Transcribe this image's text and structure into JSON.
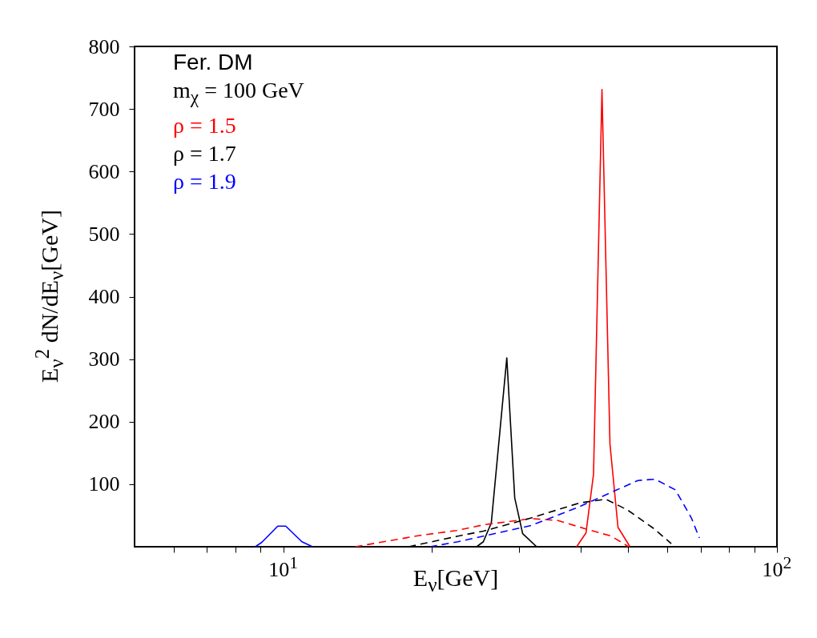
{
  "chart_data": {
    "type": "line",
    "xlabel": "E$_{ν}$[GeV]",
    "ylabel": "E$_{ν}$$^{2}$ dN/dE$_{ν}$[GeV]",
    "log": "x",
    "xlim": [
      5,
      100
    ],
    "ylim": [
      0,
      800
    ],
    "xticks": [
      {
        "value": 6,
        "label": null
      },
      {
        "value": 7,
        "label": null
      },
      {
        "value": 8,
        "label": null
      },
      {
        "value": 9,
        "label": null
      },
      {
        "value": 10,
        "label": "10$^{1}$"
      },
      {
        "value": 20,
        "label": null
      },
      {
        "value": 30,
        "label": null
      },
      {
        "value": 40,
        "label": null
      },
      {
        "value": 50,
        "label": null
      },
      {
        "value": 60,
        "label": null
      },
      {
        "value": 70,
        "label": null
      },
      {
        "value": 80,
        "label": null
      },
      {
        "value": 90,
        "label": null
      },
      {
        "value": 100,
        "label": "10$^{2}$"
      }
    ],
    "yticks": [
      100,
      200,
      300,
      400,
      500,
      600,
      700,
      800
    ],
    "grid": false,
    "legend": "top left",
    "marker": "none",
    "annotations": [
      "Fer. DM",
      "m$_{χ}$ = 100 GeV"
    ],
    "series": [
      {
        "name": "ρ = 1.5",
        "color": "#ff0000",
        "line_style": "solid",
        "x": [
          39.29,
          41.04,
          42.51,
          44.22,
          45.9,
          47.65,
          50.39
        ],
        "values": [
          0,
          22,
          116,
          731,
          164,
          31,
          0
        ]
      },
      {
        "name": "ρ = 1.7",
        "color": "#000000",
        "line_style": "solid",
        "x": [
          24.65,
          25.43,
          26.39,
          28.37,
          29.44,
          30.55,
          32.61
        ],
        "values": [
          0,
          8,
          38,
          302,
          78,
          21,
          0
        ]
      },
      {
        "name": "ρ = 1.9",
        "color": "#0000ff",
        "line_style": "solid",
        "x": [
          8.78,
          9.05,
          9.75,
          10.12,
          10.91,
          11.47
        ],
        "values": [
          0,
          7,
          33,
          33,
          8,
          0
        ]
      },
      {
        "color": "#ff0000",
        "line_style": "dashed",
        "x": [
          13.99,
          18.87,
          22.45,
          25.43,
          31.79,
          36.01,
          40.77,
          46.18,
          50.09
        ],
        "values": [
          0,
          18,
          26,
          35,
          45,
          42,
          29,
          17,
          0
        ]
      },
      {
        "color": "#000000",
        "line_style": "dashed",
        "x": [
          17.95,
          22.59,
          25.43,
          31.79,
          39.8,
          45.04,
          49.77,
          56.33,
          61.09
        ],
        "values": [
          0,
          17,
          25,
          46,
          70,
          76,
          59,
          29,
          5
        ]
      },
      {
        "color": "#0000ff",
        "line_style": "dashed",
        "x": [
          19.82,
          22.59,
          25.43,
          31.79,
          39.8,
          46.18,
          52.31,
          56.69,
          62.26,
          67.1,
          69.64
        ],
        "values": [
          0,
          8,
          17,
          34,
          64,
          87,
          106,
          108,
          91,
          46,
          14
        ]
      }
    ]
  }
}
